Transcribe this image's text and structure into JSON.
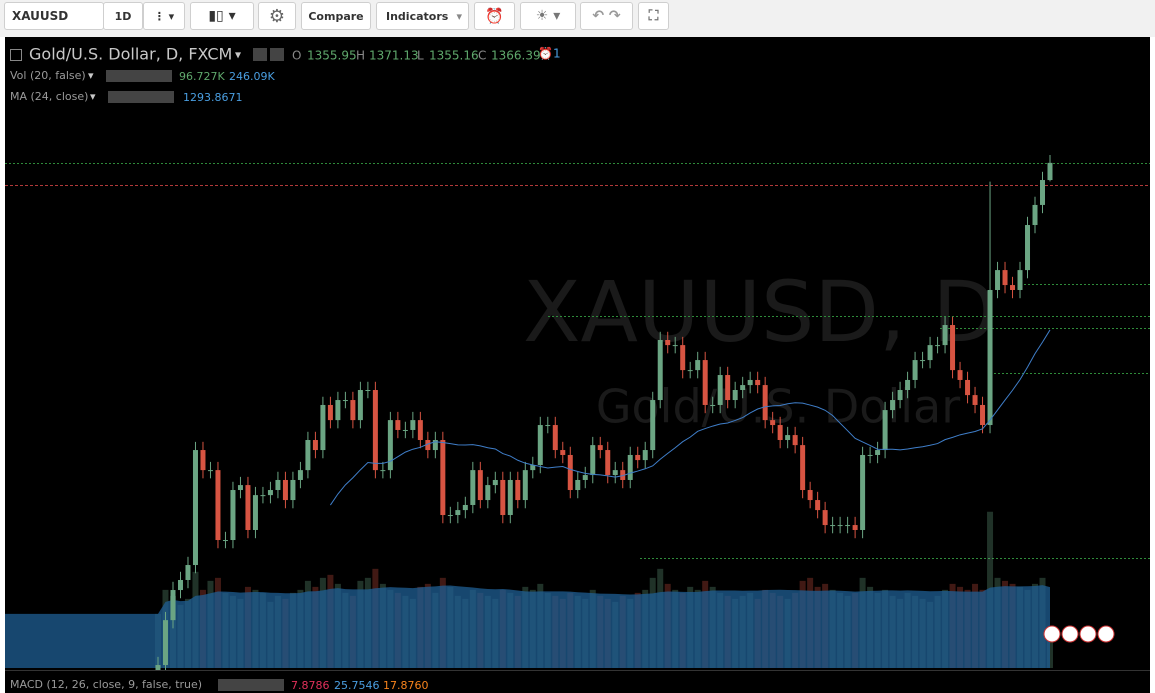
{
  "toolbar": {
    "symbol": "XAUUSD",
    "interval": "1D",
    "compare": "Compare",
    "indicators": "Indicators"
  },
  "legend": {
    "title": "Gold/U.S. Dollar, D, FXCM",
    "o": "O",
    "h": "H",
    "l": "L",
    "c": "C",
    "alerts": "1",
    "vol": "Vol (20, false)",
    "vol_value": "96.727K",
    "vol_ma": "246.09K",
    "ma": "MA (24, close)",
    "ma_value": "1293.8671",
    "macd": "MACD (12, 26, close, 9, false, true)",
    "macd_values": [
      "7.8786",
      "25.7546",
      "17.8760"
    ]
  },
  "watermark": {
    "symbol": "XAUUSD, D",
    "description": "Gold/U.S. Dollar"
  },
  "chart_data": {
    "type": "candlestick",
    "ylim": [
      1059.3,
      1442.9
    ],
    "volume_ylim": [
      0,
      2100
    ],
    "up_color": "#6ba583",
    "down_color": "#d75442",
    "ma_color": "#3f7ec9",
    "volume_ma_color": "#1f5f94",
    "open": [
      1050.0,
      1061.1,
      1088.4,
      1106.7,
      1112.8,
      1121.9,
      1191.8,
      1179.6,
      1179.6,
      1137.1,
      1137.1,
      1167.5,
      1170.5,
      1143.2,
      1164.4,
      1164.4,
      1167.5,
      1173.6,
      1161.4,
      1173.6,
      1179.6,
      1197.9,
      1191.8,
      1219.2,
      1210.0,
      1222.2,
      1222.2,
      1210.0,
      1228.3,
      1228.3,
      1179.6,
      1179.6,
      1210.0,
      1204.0,
      1204.0,
      1210.0,
      1197.9,
      1191.8,
      1197.9,
      1152.3,
      1152.3,
      1155.3,
      1158.4,
      1179.6,
      1161.4,
      1170.5,
      1173.6,
      1152.3,
      1173.6,
      1161.4,
      1179.6,
      1182.7,
      1207.0,
      1207.0,
      1191.8,
      1188.8,
      1167.5,
      1173.6,
      1176.6,
      1194.8,
      1191.8,
      1176.6,
      1179.6,
      1173.6,
      1188.8,
      1185.7,
      1191.8,
      1222.2,
      1258.7,
      1255.6,
      1255.6,
      1240.4,
      1240.4,
      1246.5,
      1219.2,
      1219.2,
      1237.4,
      1222.2,
      1228.3,
      1231.3,
      1234.4,
      1231.3,
      1210.0,
      1207.0,
      1197.9,
      1200.9,
      1194.8,
      1167.5,
      1161.4,
      1155.3,
      1146.2,
      1146.2,
      1146.2,
      1146.2,
      1143.2,
      1188.8,
      1188.8,
      1191.8,
      1216.1,
      1222.2,
      1228.3,
      1234.4,
      1246.5,
      1246.5,
      1255.6,
      1255.6,
      1267.8,
      1240.4,
      1234.4,
      1225.2,
      1219.2,
      1207.0,
      1289.1,
      1301.2,
      1292.1,
      1289.1,
      1301.2,
      1328.6,
      1340.8,
      1355.95
    ],
    "high": [
      1066.1,
      1093.4,
      1111.7,
      1117.8,
      1126.9,
      1196.8,
      1196.8,
      1184.6,
      1184.6,
      1142.1,
      1172.5,
      1175.5,
      1175.5,
      1169.4,
      1169.4,
      1172.5,
      1178.6,
      1178.6,
      1178.6,
      1184.6,
      1202.9,
      1202.9,
      1224.2,
      1224.2,
      1227.2,
      1227.2,
      1227.2,
      1233.3,
      1233.3,
      1233.3,
      1184.6,
      1215.0,
      1215.0,
      1209.0,
      1215.0,
      1215.0,
      1202.9,
      1202.9,
      1202.9,
      1157.3,
      1160.3,
      1163.4,
      1184.6,
      1184.6,
      1175.5,
      1178.6,
      1178.6,
      1178.6,
      1178.6,
      1184.6,
      1187.7,
      1212.0,
      1212.0,
      1212.0,
      1196.8,
      1193.8,
      1178.6,
      1181.6,
      1199.8,
      1199.8,
      1196.8,
      1184.6,
      1184.6,
      1193.8,
      1193.8,
      1196.8,
      1227.2,
      1263.7,
      1263.7,
      1260.6,
      1260.6,
      1245.4,
      1251.5,
      1251.5,
      1224.2,
      1242.4,
      1242.4,
      1233.3,
      1236.3,
      1239.4,
      1239.4,
      1236.3,
      1215.0,
      1212.0,
      1205.9,
      1205.9,
      1199.8,
      1172.5,
      1166.4,
      1160.3,
      1151.2,
      1151.2,
      1151.2,
      1151.2,
      1193.8,
      1193.8,
      1196.8,
      1221.1,
      1227.2,
      1233.3,
      1239.4,
      1251.5,
      1251.5,
      1260.6,
      1260.6,
      1272.8,
      1272.8,
      1245.4,
      1239.4,
      1230.2,
      1224.2,
      1355.0,
      1306.2,
      1306.2,
      1297.1,
      1306.2,
      1333.6,
      1345.8,
      1360.95,
      1371.13
    ],
    "low": [
      1045.0,
      1056.1,
      1083.4,
      1101.7,
      1107.8,
      1116.9,
      1174.6,
      1174.6,
      1132.1,
      1132.1,
      1132.1,
      1162.5,
      1138.2,
      1138.2,
      1159.4,
      1159.4,
      1162.5,
      1156.4,
      1156.4,
      1168.6,
      1174.6,
      1186.8,
      1186.8,
      1205.0,
      1205.0,
      1217.2,
      1205.0,
      1205.0,
      1223.3,
      1174.6,
      1174.6,
      1174.6,
      1199.0,
      1199.0,
      1199.0,
      1192.9,
      1186.8,
      1186.8,
      1147.3,
      1147.3,
      1147.3,
      1150.3,
      1153.4,
      1156.4,
      1156.4,
      1165.5,
      1147.3,
      1147.3,
      1156.4,
      1156.4,
      1174.6,
      1177.7,
      1202.0,
      1186.8,
      1183.8,
      1162.5,
      1162.5,
      1168.6,
      1171.6,
      1186.8,
      1171.6,
      1171.6,
      1168.6,
      1168.6,
      1180.7,
      1180.7,
      1186.8,
      1217.2,
      1250.6,
      1250.6,
      1235.4,
      1235.4,
      1235.4,
      1214.2,
      1214.2,
      1214.2,
      1217.2,
      1217.2,
      1223.3,
      1226.3,
      1226.3,
      1205.0,
      1202.0,
      1192.9,
      1192.9,
      1189.8,
      1162.5,
      1156.4,
      1150.3,
      1141.2,
      1141.2,
      1141.2,
      1141.2,
      1138.2,
      1138.2,
      1183.8,
      1183.8,
      1186.8,
      1211.1,
      1217.2,
      1223.3,
      1229.4,
      1241.5,
      1241.5,
      1250.6,
      1250.6,
      1235.4,
      1229.4,
      1220.2,
      1214.2,
      1202.0,
      1202.0,
      1284.1,
      1287.1,
      1284.1,
      1284.1,
      1296.2,
      1323.6,
      1335.8,
      1355.16
    ],
    "close": [
      1061.1,
      1088.4,
      1106.7,
      1112.8,
      1121.9,
      1191.8,
      1179.6,
      1179.6,
      1137.1,
      1137.1,
      1167.5,
      1170.5,
      1143.2,
      1164.4,
      1164.4,
      1167.5,
      1173.6,
      1161.4,
      1173.6,
      1179.6,
      1197.9,
      1191.8,
      1219.2,
      1210.0,
      1222.2,
      1222.2,
      1210.0,
      1228.3,
      1228.3,
      1179.6,
      1179.6,
      1210.0,
      1204.0,
      1204.0,
      1210.0,
      1197.9,
      1191.8,
      1197.9,
      1152.3,
      1152.3,
      1155.3,
      1158.4,
      1179.6,
      1161.4,
      1170.5,
      1173.6,
      1152.3,
      1173.6,
      1161.4,
      1179.6,
      1182.7,
      1207.0,
      1207.0,
      1191.8,
      1188.8,
      1167.5,
      1173.6,
      1176.6,
      1194.8,
      1191.8,
      1176.6,
      1179.6,
      1173.6,
      1188.8,
      1185.7,
      1191.8,
      1222.2,
      1258.7,
      1255.6,
      1255.6,
      1240.4,
      1240.4,
      1246.5,
      1219.2,
      1219.2,
      1237.4,
      1222.2,
      1228.3,
      1231.3,
      1234.4,
      1231.3,
      1210.0,
      1207.0,
      1197.9,
      1200.9,
      1194.8,
      1167.5,
      1161.4,
      1155.3,
      1146.2,
      1146.2,
      1146.2,
      1146.2,
      1143.2,
      1188.8,
      1188.8,
      1191.8,
      1216.1,
      1222.2,
      1228.3,
      1234.4,
      1246.5,
      1246.5,
      1255.6,
      1255.6,
      1267.8,
      1240.4,
      1234.4,
      1225.2,
      1219.2,
      1207.0,
      1289.1,
      1301.2,
      1292.1,
      1289.1,
      1301.2,
      1328.6,
      1340.8,
      1355.95,
      1366.39
    ],
    "volume": [
      180,
      260,
      240,
      210,
      230,
      320,
      260,
      290,
      300,
      250,
      240,
      230,
      270,
      260,
      250,
      220,
      240,
      230,
      250,
      260,
      290,
      270,
      300,
      310,
      280,
      250,
      240,
      290,
      300,
      330,
      280,
      260,
      250,
      240,
      230,
      270,
      280,
      250,
      300,
      270,
      240,
      230,
      260,
      250,
      240,
      230,
      260,
      250,
      240,
      270,
      260,
      280,
      250,
      240,
      230,
      250,
      240,
      230,
      260,
      240,
      230,
      220,
      240,
      230,
      250,
      260,
      300,
      330,
      280,
      260,
      250,
      270,
      260,
      290,
      270,
      250,
      240,
      230,
      240,
      250,
      230,
      260,
      250,
      240,
      230,
      250,
      290,
      300,
      270,
      280,
      260,
      250,
      240,
      250,
      300,
      270,
      250,
      260,
      240,
      230,
      250,
      240,
      230,
      220,
      240,
      260,
      280,
      270,
      260,
      280,
      260,
      520,
      300,
      290,
      280,
      270,
      260,
      280,
      300,
      96.727
    ]
  }
}
